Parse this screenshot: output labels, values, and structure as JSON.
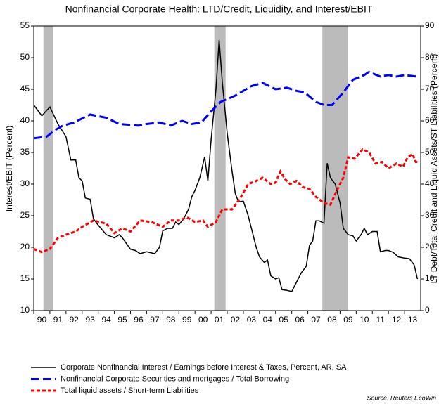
{
  "chart_data": {
    "type": "line",
    "subtitle": "Nonfinancial Corporate Health: LTD/Credit, Liquidity, and Interest/EBIT",
    "ylabel": "Interest/EBIT (Percent)",
    "y2label": "LT Debt/Total Credit and Liquid Assets/ST Liabilities (Percent)",
    "source": "Source: Reuters EcoWin",
    "xlim": [
      1990,
      2014
    ],
    "xticks": [
      {
        "value": 1990,
        "label": "90"
      },
      {
        "value": 1991,
        "label": "91"
      },
      {
        "value": 1992,
        "label": "92"
      },
      {
        "value": 1993,
        "label": "93"
      },
      {
        "value": 1994,
        "label": "94"
      },
      {
        "value": 1995,
        "label": "95"
      },
      {
        "value": 1996,
        "label": "96"
      },
      {
        "value": 1997,
        "label": "97"
      },
      {
        "value": 1998,
        "label": "98"
      },
      {
        "value": 1999,
        "label": "99"
      },
      {
        "value": 2000,
        "label": "00"
      },
      {
        "value": 2001,
        "label": "01"
      },
      {
        "value": 2002,
        "label": "02"
      },
      {
        "value": 2003,
        "label": "03"
      },
      {
        "value": 2004,
        "label": "04"
      },
      {
        "value": 2005,
        "label": "05"
      },
      {
        "value": 2006,
        "label": "06"
      },
      {
        "value": 2007,
        "label": "07"
      },
      {
        "value": 2008,
        "label": "08"
      },
      {
        "value": 2009,
        "label": "09"
      },
      {
        "value": 2010,
        "label": "10"
      },
      {
        "value": 2011,
        "label": "11"
      },
      {
        "value": 2012,
        "label": "12"
      },
      {
        "value": 2013,
        "label": "13"
      }
    ],
    "ylim": [
      10,
      55
    ],
    "yticks": [
      10,
      15,
      20,
      25,
      30,
      35,
      40,
      45,
      50,
      55
    ],
    "y2lim": [
      0,
      90
    ],
    "y2ticks": [
      0,
      10,
      20,
      30,
      40,
      50,
      60,
      70,
      80,
      90
    ],
    "recessions": [
      [
        1990.6,
        1991.2
      ],
      [
        2001.2,
        2001.9
      ],
      [
        2007.9,
        2009.5
      ]
    ],
    "recession_color": "#bbbbbb",
    "series": [
      {
        "name": "Corporate Nonfinancial Interest / Earnings before Interest & Taxes, Percent, AR, SA",
        "color": "#000000",
        "style": "solid",
        "axis": "y",
        "x": [
          1990.0,
          1990.5,
          1991.0,
          1991.5,
          1992.0,
          1992.3,
          1992.6,
          1992.8,
          1993.0,
          1993.2,
          1993.5,
          1993.7,
          1994.0,
          1994.5,
          1995.0,
          1995.3,
          1995.5,
          1996.0,
          1996.3,
          1996.6,
          1997.0,
          1997.5,
          1997.8,
          1998.0,
          1998.3,
          1998.6,
          1998.8,
          1999.0,
          1999.3,
          1999.6,
          1999.8,
          2000.0,
          2000.3,
          2000.6,
          2000.8,
          2001.0,
          2001.3,
          2001.5,
          2001.7,
          2002.0,
          2002.3,
          2002.5,
          2002.7,
          2003.0,
          2003.3,
          2003.5,
          2003.8,
          2004.0,
          2004.3,
          2004.5,
          2004.7,
          2005.0,
          2005.2,
          2005.4,
          2005.7,
          2006.0,
          2006.3,
          2006.6,
          2006.9,
          2007.1,
          2007.3,
          2007.5,
          2007.7,
          2008.0,
          2008.2,
          2008.4,
          2008.7,
          2009.0,
          2009.2,
          2009.5,
          2009.8,
          2010.0,
          2010.3,
          2010.5,
          2010.7,
          2011.0,
          2011.3,
          2011.5,
          2011.8,
          2012.0,
          2012.3,
          2012.6,
          2013.0,
          2013.3,
          2013.6,
          2013.8
        ],
        "values": [
          42.5,
          40.8,
          42.2,
          39.5,
          37.5,
          33.8,
          33.8,
          31,
          30.5,
          27.8,
          27.6,
          24.5,
          23.5,
          22,
          21.5,
          22,
          21.5,
          19.7,
          19.5,
          19,
          19.3,
          19,
          20,
          22.6,
          23,
          23,
          24,
          23.6,
          24.5,
          26,
          28,
          29,
          31,
          34.3,
          30.5,
          37,
          45,
          52.8,
          46,
          38,
          32,
          28.5,
          27.2,
          27.3,
          25,
          23,
          20,
          18.5,
          17.6,
          18,
          15.5,
          15,
          15.2,
          13.3,
          13.2,
          13,
          14.5,
          16,
          17,
          20.3,
          21,
          24.2,
          24.2,
          23.8,
          33.3,
          31,
          30,
          27,
          23,
          22,
          21.8,
          21,
          22,
          23,
          22,
          22.5,
          22.5,
          19.3,
          19.5,
          19.5,
          19.2,
          18.5,
          18.3,
          18.2,
          17.2,
          15
        ]
      },
      {
        "name": "Nonfinancial Corporate Securities and mortgages / Total Borrowing",
        "color": "#0000ff",
        "style": "dashed",
        "axis": "y2",
        "x": [
          1990.0,
          1990.8,
          1991.3,
          1991.8,
          1992.5,
          1993.5,
          1994.5,
          1995.3,
          1996.5,
          1997.0,
          1997.8,
          1998.5,
          1999.2,
          1999.8,
          2000.4,
          2001.0,
          2001.6,
          2002.5,
          2003.5,
          2004.2,
          2005.0,
          2005.7,
          2006.3,
          2006.8,
          2007.5,
          2008.0,
          2008.5,
          2009.2,
          2009.8,
          2010.5,
          2010.8,
          2011.5,
          2012.0,
          2012.5,
          2013.0,
          2013.8
        ],
        "values": [
          54.5,
          55,
          57,
          58.5,
          59.5,
          62,
          61,
          59,
          58.5,
          59,
          59.5,
          58.5,
          60,
          59,
          59.5,
          63,
          66,
          68,
          71,
          72,
          70,
          70.5,
          69.5,
          69,
          66,
          65,
          65,
          69,
          73,
          74.5,
          75.5,
          74,
          74.5,
          74,
          74.5,
          74
        ]
      },
      {
        "name": "Total liquid assets / Short-term Liabilities",
        "color": "#ff0000",
        "style": "dotted",
        "axis": "y2",
        "x": [
          1990.0,
          1990.5,
          1991.0,
          1991.5,
          1992.0,
          1992.6,
          1993.0,
          1993.7,
          1994.5,
          1995.0,
          1995.5,
          1996.0,
          1996.6,
          1997.3,
          1998.0,
          1998.5,
          1999.0,
          1999.5,
          2000.0,
          2000.5,
          2000.8,
          2001.3,
          2001.7,
          2002.3,
          2002.8,
          2003.3,
          2003.8,
          2004.2,
          2004.7,
          2005.0,
          2005.3,
          2005.6,
          2005.9,
          2006.3,
          2006.7,
          2007.1,
          2007.5,
          2008.0,
          2008.4,
          2008.8,
          2009.2,
          2009.5,
          2009.9,
          2010.4,
          2010.8,
          2011.2,
          2011.6,
          2012.0,
          2012.5,
          2012.9,
          2013.2,
          2013.5,
          2013.7,
          2013.9
        ],
        "values": [
          19.5,
          18.5,
          19.5,
          23,
          24,
          25,
          26.5,
          28.5,
          27.5,
          24.5,
          26,
          25,
          28.5,
          28,
          26.5,
          28.5,
          28.5,
          29.5,
          28,
          28.5,
          26.5,
          28,
          32,
          32,
          35.5,
          40,
          41,
          42,
          40,
          40.5,
          44,
          41.5,
          40,
          41,
          39,
          38.5,
          36,
          34,
          33.5,
          38,
          42,
          48.5,
          48,
          51,
          50,
          46.5,
          47,
          45,
          46.5,
          45.5,
          48.5,
          49.5,
          47,
          47
        ]
      }
    ]
  }
}
